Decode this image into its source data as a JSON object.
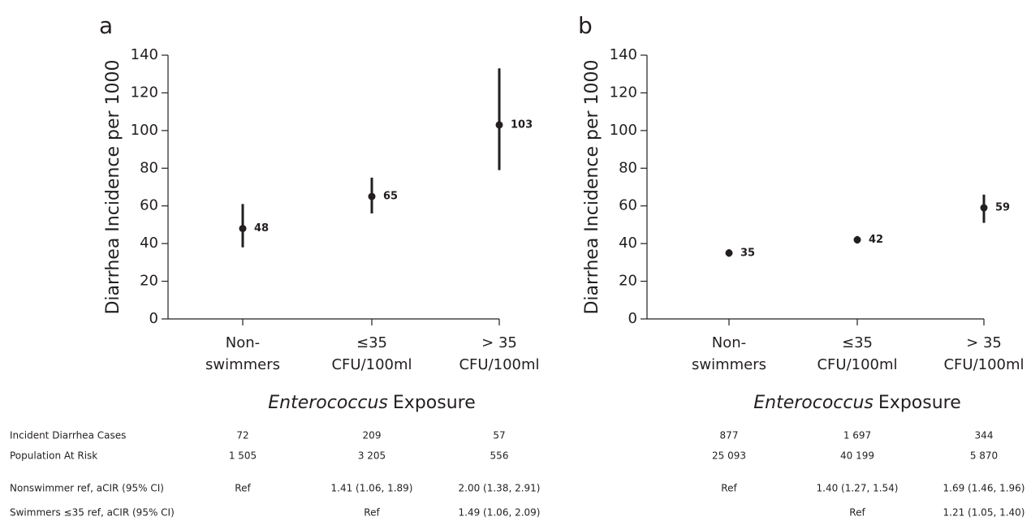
{
  "chart_data": [
    {
      "type": "errorbar",
      "panel": "a",
      "ylabel": "Diarrhea Incidence per 1000",
      "categories": [
        [
          "Non-",
          "swimmers"
        ],
        [
          "≤35",
          "CFU/100ml"
        ],
        [
          "> 35",
          "CFU/100ml"
        ]
      ],
      "xlabel": [
        "Enterococcus",
        "Exposure"
      ],
      "values": [
        48,
        65,
        103
      ],
      "lower": [
        38,
        56,
        79
      ],
      "upper": [
        61,
        75,
        133
      ],
      "color": "#231f20",
      "ylim": [
        0,
        140
      ],
      "yticks": [
        0,
        20,
        40,
        60,
        80,
        100,
        120,
        140
      ],
      "table_rows": [
        [
          "72",
          "209",
          "57"
        ],
        [
          "1 505",
          "3 205",
          "556"
        ],
        [
          "Ref",
          "1.41 (1.06, 1.89)",
          "2.00 (1.38, 2.91)"
        ],
        [
          null,
          "Ref",
          "1.49 (1.06, 2.09)"
        ]
      ]
    },
    {
      "type": "errorbar",
      "panel": "b",
      "ylabel": "Diarrhea Incidence per 1000",
      "categories": [
        [
          "Non-",
          "swimmers"
        ],
        [
          "≤35",
          "CFU/100ml"
        ],
        [
          "> 35",
          "CFU/100ml"
        ]
      ],
      "xlabel": [
        "Enterococcus",
        "Exposure"
      ],
      "values": [
        35,
        42,
        59
      ],
      "lower": [
        33,
        40,
        51
      ],
      "upper": [
        37,
        44,
        66
      ],
      "color": "#231f20",
      "ylim": [
        0,
        140
      ],
      "yticks": [
        0,
        20,
        40,
        60,
        80,
        100,
        120,
        140
      ],
      "table_rows": [
        [
          "877",
          "1 697",
          "344"
        ],
        [
          "25 093",
          "40 199",
          "5 870"
        ],
        [
          "Ref",
          "1.40 (1.27, 1.54)",
          "1.69 (1.46, 1.96)"
        ],
        [
          null,
          "Ref",
          "1.21 (1.05, 1.40)"
        ]
      ]
    }
  ],
  "table_row_labels": [
    "Incident Diarrhea Cases",
    "Population At Risk",
    "Nonswimmer ref, aCIR (95% CI)",
    "Swimmers ≤35  ref, aCIR (95% CI)"
  ]
}
